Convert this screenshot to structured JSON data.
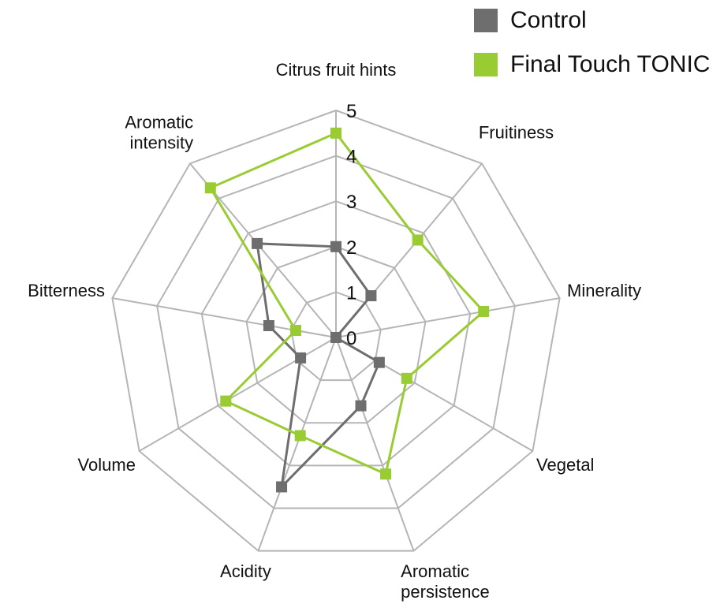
{
  "chart_data": {
    "type": "radar",
    "axes": [
      "Citrus fruit hints",
      "Fruitiness",
      "Minerality",
      "Vegetal",
      "Aromatic persistence",
      "Acidity",
      "Volume",
      "Bitterness",
      "Aromatic intensity"
    ],
    "axis_label_lines": [
      [
        "Citrus fruit hints"
      ],
      [
        "Fruitiness"
      ],
      [
        "Minerality"
      ],
      [
        "Vegetal"
      ],
      [
        "Aromatic",
        "persistence"
      ],
      [
        "Acidity"
      ],
      [
        "Volume"
      ],
      [
        "Bitterness"
      ],
      [
        "Aromatic",
        "intensity"
      ]
    ],
    "range": [
      0,
      5
    ],
    "ticks": [
      "0",
      "1",
      "2",
      "3",
      "4",
      "5"
    ],
    "series": [
      {
        "name": "Control",
        "color": "#6e6e6e",
        "values": [
          2,
          1.2,
          0,
          1.1,
          1.6,
          3.5,
          0.9,
          1.5,
          2.7
        ]
      },
      {
        "name": "Final Touch TONIC",
        "color": "#99cc33",
        "values": [
          4.5,
          2.8,
          3.3,
          1.8,
          3.2,
          2.3,
          2.8,
          0.9,
          4.3
        ]
      }
    ],
    "legend_position": "top-right",
    "grid": true
  }
}
